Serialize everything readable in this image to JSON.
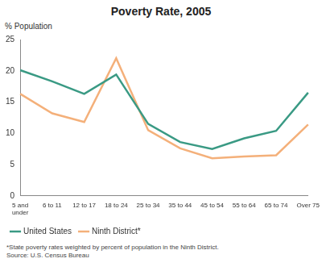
{
  "chart_data": {
    "type": "line",
    "title": "Poverty Rate, 2005",
    "y_label": "% Population",
    "categories": [
      "5 and under",
      "6 to 11",
      "12 to 17",
      "18 to 24",
      "25 to 34",
      "35 to 44",
      "45 to 54",
      "55 to 64",
      "65 to 74",
      "Over 75"
    ],
    "series": [
      {
        "name": "United States",
        "color": "#3a9a84",
        "values": [
          20.1,
          18.3,
          16.3,
          19.4,
          11.5,
          8.6,
          7.5,
          9.2,
          10.4,
          16.5
        ]
      },
      {
        "name": "Ninth District*",
        "color": "#f4b07a",
        "values": [
          16.3,
          13.2,
          11.8,
          22.0,
          10.5,
          7.6,
          6.0,
          6.3,
          6.5,
          11.4
        ]
      }
    ],
    "ylim": [
      0,
      25
    ],
    "yticks": [
      0,
      5,
      10,
      15,
      20,
      25
    ],
    "grid": false,
    "legend": "bottom left",
    "footnote": "*State poverty rates weighted by percent of population in the Ninth District.",
    "source": "Source: U.S. Census Bureau"
  }
}
